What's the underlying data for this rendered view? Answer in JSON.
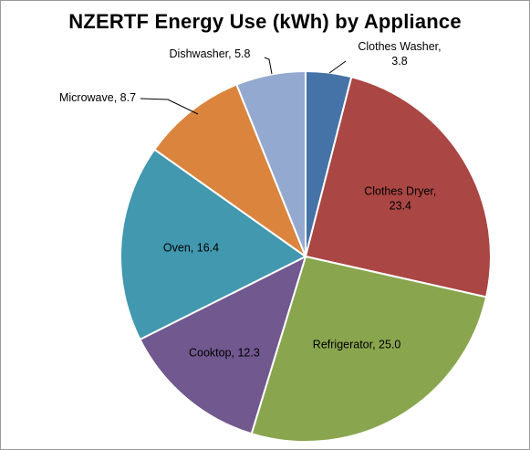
{
  "chart_data": {
    "type": "pie",
    "title": "NZERTF Energy Use (kWh) by Appliance",
    "unit": "kWh",
    "slices": [
      {
        "label": "Clothes Washer",
        "value": 3.8,
        "color": "#4572A7",
        "text": [
          "Clothes Washer,",
          "3.8"
        ]
      },
      {
        "label": "Clothes Dryer",
        "value": 23.4,
        "color": "#AA4643",
        "text": [
          "Clothes Dryer,",
          "23.4"
        ]
      },
      {
        "label": "Refrigerator",
        "value": 25.0,
        "color": "#89A54E",
        "text": [
          "Refrigerator, 25.0"
        ]
      },
      {
        "label": "Cooktop",
        "value": 12.3,
        "color": "#71588F",
        "text": [
          "Cooktop, 12.3"
        ]
      },
      {
        "label": "Oven",
        "value": 16.4,
        "color": "#4198AF",
        "text": [
          "Oven, 16.4"
        ]
      },
      {
        "label": "Microwave",
        "value": 8.7,
        "color": "#DB843D",
        "text": [
          "Microwave, 8.7"
        ]
      },
      {
        "label": "Dishwasher",
        "value": 5.8,
        "color": "#93A9CF",
        "text": [
          "Dishwasher, 5.8"
        ]
      }
    ],
    "legend": "none"
  }
}
